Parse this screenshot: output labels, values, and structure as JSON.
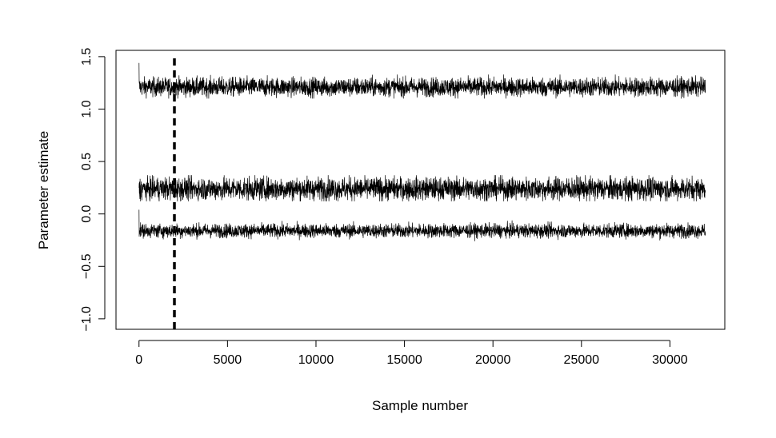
{
  "chart_data": {
    "type": "line",
    "title": "",
    "xlabel": "Sample number",
    "ylabel": "Parameter estimate",
    "xlim": [
      -1300,
      33100
    ],
    "ylim": [
      -1.1,
      1.56
    ],
    "x_ticks": [
      0,
      5000,
      10000,
      15000,
      20000,
      25000,
      30000
    ],
    "x_tick_labels": [
      "0",
      "5000",
      "10000",
      "15000",
      "20000",
      "25000",
      "30000"
    ],
    "y_ticks": [
      -1.0,
      -0.5,
      0.0,
      0.5,
      1.0,
      1.5
    ],
    "y_tick_labels": [
      "−1.0",
      "−0.5",
      "0.0",
      "0.5",
      "1.0",
      "1.5"
    ],
    "grid": false,
    "legend": "none",
    "line_color": "#000000",
    "n_samples": 32000,
    "burn_in_marker": {
      "x": 2000,
      "style": "dashed"
    },
    "series": [
      {
        "start": 1.44,
        "mean": 1.21,
        "spread": 0.045,
        "min": 1.1,
        "max": 1.33
      },
      {
        "start": 0.25,
        "mean": 0.24,
        "spread": 0.055,
        "min": 0.12,
        "max": 0.37
      },
      {
        "start": 0.04,
        "mean": -0.16,
        "spread": 0.033,
        "min": -0.26,
        "max": -0.05
      }
    ]
  }
}
